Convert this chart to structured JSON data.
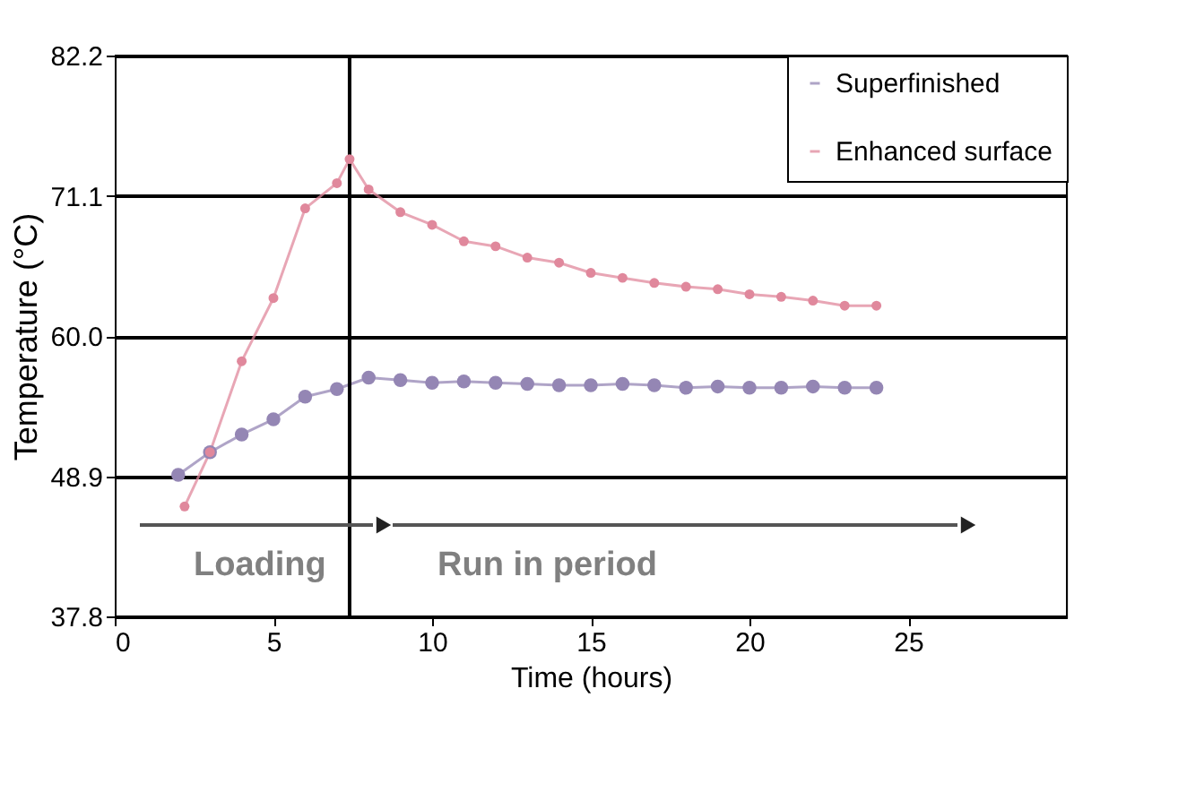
{
  "chart_data": {
    "type": "line",
    "xlabel": "Time (hours)",
    "ylabel": "Temperature (°C)",
    "xlim": [
      0,
      30
    ],
    "xticks": [
      0,
      5,
      10,
      15,
      20,
      25
    ],
    "ylim": [
      37.8,
      82.2
    ],
    "yticks": [
      37.8,
      48.9,
      {
        "value": 60,
        "label": "60.0"
      },
      71.1,
      82.2
    ],
    "grid": "y",
    "legend": "top right",
    "marker": "circle",
    "line_style": "solid",
    "series": [
      {
        "name": "Superfinished",
        "color": "#9486b4",
        "x": [
          2,
          3,
          4,
          5,
          6,
          7,
          8,
          9,
          10,
          11,
          12,
          13,
          14,
          15,
          16,
          17,
          18,
          19,
          20,
          21,
          22,
          23,
          24
        ],
        "values": [
          49.0,
          50.8,
          52.2,
          53.4,
          55.2,
          55.8,
          56.7,
          56.5,
          56.3,
          56.4,
          56.3,
          56.2,
          56.1,
          56.1,
          56.2,
          56.1,
          55.9,
          56.0,
          55.9,
          55.9,
          56.0,
          55.9,
          55.9
        ]
      },
      {
        "name": "Enhanced surface",
        "color": "#e0889c",
        "x": [
          2.2,
          3,
          4,
          5,
          6,
          7,
          7.4,
          8,
          9,
          10,
          11,
          12,
          13,
          14,
          15,
          16,
          17,
          18,
          19,
          20,
          21,
          22,
          23,
          24
        ],
        "values": [
          46.5,
          50.8,
          58.0,
          63.0,
          70.1,
          72.1,
          74.0,
          71.6,
          69.8,
          68.8,
          67.5,
          67.1,
          66.2,
          65.8,
          65.0,
          64.6,
          64.2,
          63.9,
          63.7,
          63.3,
          63.1,
          62.8,
          62.4,
          62.4
        ]
      }
    ],
    "ref_lines": [
      {
        "axis": "x",
        "value": 7.4,
        "color": "#000000",
        "line_style": "solid"
      }
    ],
    "annotations": [
      "Loading",
      "Run in period"
    ]
  }
}
